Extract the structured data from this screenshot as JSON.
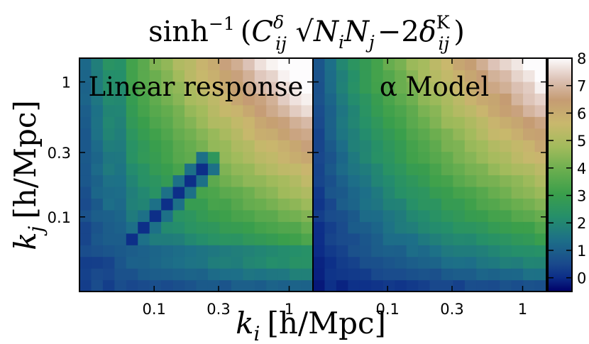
{
  "chart_data": {
    "type": "heatmap",
    "title": {
      "fn": "sinh",
      "fn_exp": "−1",
      "C": "C",
      "C_sup": "δ",
      "C_sub": "ij",
      "N1": "N",
      "N1_sub": "i",
      "N2": "N",
      "N2_sub": "j",
      "minus_two": "−2",
      "delta": "δ",
      "delta_sup": "K",
      "delta_sub": "ij",
      "open": "(",
      "close": ")"
    },
    "xlabel": {
      "k": "k",
      "sub": "i",
      "unit": "[h/Mpc]"
    },
    "ylabel": {
      "k": "k",
      "sub": "j",
      "unit": "[h/Mpc]"
    },
    "x_ticks": [
      "0.1",
      "0.3",
      "1"
    ],
    "x_tick_values": [
      0.1,
      0.3,
      1
    ],
    "y_ticks": [
      "0.1",
      "0.3",
      "1"
    ],
    "y_tick_values": [
      0.1,
      0.3,
      1
    ],
    "xlim": [
      0.028,
      1.5
    ],
    "ylim": [
      0.028,
      1.5
    ],
    "log_scale": true,
    "grid_size": 20,
    "panels": [
      {
        "label": "Linear response",
        "model": "linear"
      },
      {
        "label": "α Model",
        "model": "alpha"
      }
    ],
    "colorbar": {
      "colormap": "gist_earth",
      "range": [
        -0.5,
        8
      ],
      "ticks": [
        "0",
        "1",
        "2",
        "3",
        "4",
        "5",
        "6",
        "7",
        "8"
      ],
      "tick_values": [
        0,
        1,
        2,
        3,
        4,
        5,
        6,
        7,
        8
      ]
    }
  }
}
